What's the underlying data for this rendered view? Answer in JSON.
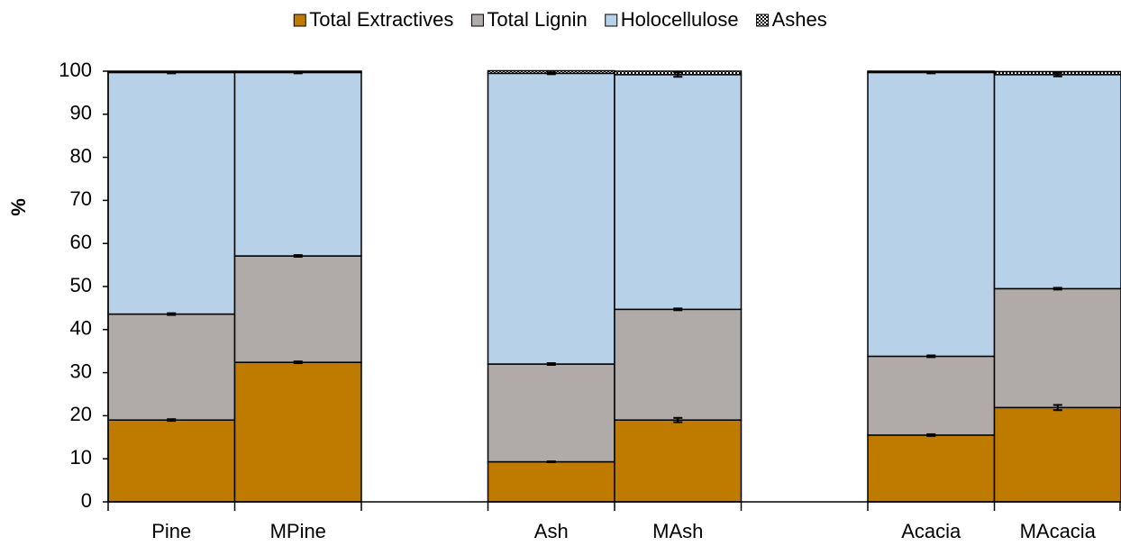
{
  "chart_data": {
    "type": "stacked_bar",
    "y_label": "%",
    "categories": [
      "Pine",
      "MPine",
      null,
      "Ash",
      "MAsh",
      null,
      "Acacia",
      "MAcacia"
    ],
    "series": [
      {
        "name": "Total Extractives",
        "color": "#bf7b00",
        "values": [
          19,
          32.4,
          null,
          9.3,
          19,
          null,
          15.5,
          21.9
        ],
        "errors": [
          0.2,
          0.2,
          null,
          0.1,
          0.5,
          null,
          0.2,
          0.6
        ]
      },
      {
        "name": "Total Lignin",
        "color": "#b0aaa9",
        "values": [
          24.6,
          24.7,
          null,
          22.7,
          25.7,
          null,
          18.3,
          27.6
        ],
        "errors": [
          0.2,
          0.2,
          null,
          0.2,
          0.2,
          null,
          0.2,
          0.2
        ]
      },
      {
        "name": "Holocellulose",
        "color": "#b6d1e8",
        "values": [
          56.1,
          42.6,
          null,
          67.5,
          54.5,
          null,
          65.9,
          49.7
        ],
        "errors": [
          0.2,
          0.2,
          null,
          0.2,
          0.5,
          null,
          0.2,
          0.4
        ]
      },
      {
        "name": "Ashes",
        "color": "#000000",
        "pattern": "checkerboard",
        "values": [
          0.3,
          0.3,
          null,
          0.6,
          0.8,
          null,
          0.3,
          0.7
        ]
      }
    ],
    "ylim": [
      0,
      100
    ],
    "yticks": [
      0,
      10,
      20,
      30,
      40,
      50,
      60,
      70,
      80,
      90,
      100
    ],
    "grid": false,
    "legend": "top"
  }
}
